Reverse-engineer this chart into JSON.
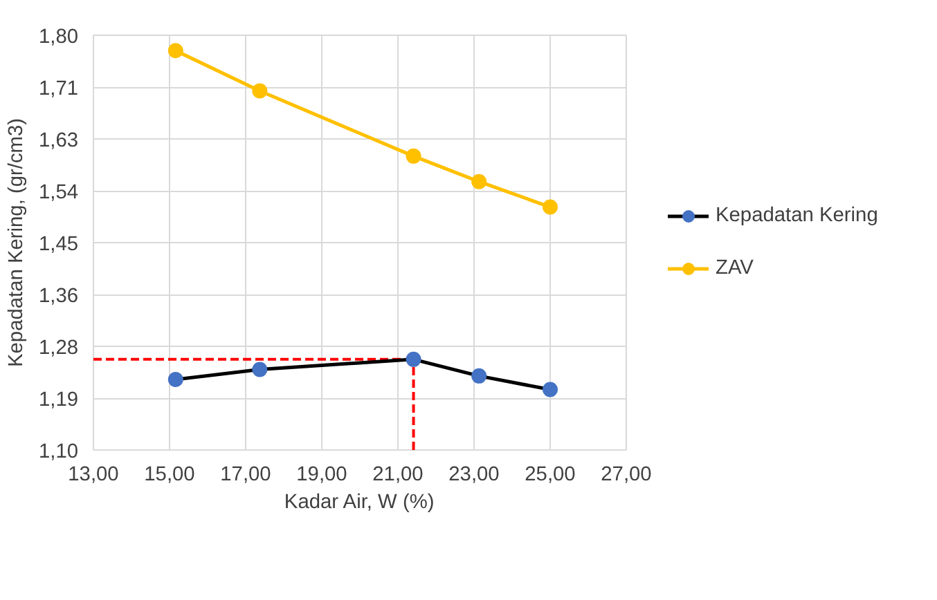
{
  "chart_data": {
    "type": "line",
    "xlabel": "Kadar Air, W (%)",
    "ylabel": "Kepadatan Kering, (gr/cm3)",
    "xlim": [
      13,
      27
    ],
    "xticks": [
      {
        "value": 13,
        "label": "13,00"
      },
      {
        "value": 15,
        "label": "15,00"
      },
      {
        "value": 17,
        "label": "17,00"
      },
      {
        "value": 19,
        "label": "19,00"
      },
      {
        "value": 21,
        "label": "21,00"
      },
      {
        "value": 23,
        "label": "23,00"
      },
      {
        "value": 25,
        "label": "25,00"
      },
      {
        "value": 27,
        "label": "27,00"
      }
    ],
    "ylim": [
      1.1,
      1.8
    ],
    "yticks": [
      {
        "value": 1.1,
        "label": "1,10"
      },
      {
        "value": 1.1875,
        "label": "1,19"
      },
      {
        "value": 1.275,
        "label": "1,28"
      },
      {
        "value": 1.3625,
        "label": "1,36"
      },
      {
        "value": 1.45,
        "label": "1,45"
      },
      {
        "value": 1.5375,
        "label": "1,54"
      },
      {
        "value": 1.625,
        "label": "1,63"
      },
      {
        "value": 1.7125,
        "label": "1,71"
      },
      {
        "value": 1.8,
        "label": "1,80"
      }
    ],
    "x": [
      15.16,
      17.37,
      21.41,
      23.13,
      25.0
    ],
    "series": [
      {
        "name": "Kepadatan Kering",
        "color": "#4472c4",
        "values": [
          1.219,
          1.236,
          1.253,
          1.225,
          1.202
        ]
      },
      {
        "name": "ZAV",
        "color": "#ffc000",
        "values": [
          1.774,
          1.706,
          1.596,
          1.553,
          1.51
        ]
      }
    ],
    "ref_lines": [
      {
        "axis": "y",
        "value": 1.253,
        "color": "#ff0000",
        "line_style": "dashed"
      },
      {
        "axis": "x",
        "value": 21.41,
        "color": "#ff0000",
        "line_style": "dashed"
      }
    ],
    "grid": true,
    "legend": "right",
    "marker": "circle"
  }
}
